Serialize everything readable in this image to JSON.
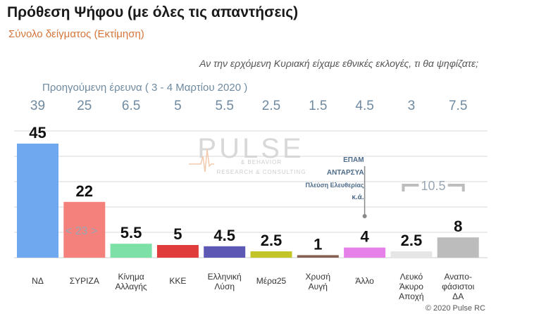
{
  "header": {
    "title": "Πρόθεση Ψήφου (με όλες τις απαντήσεις)",
    "subtitle": "Σύνολο δείγματος   (Εκτίμηση)",
    "question": "Αν την ερχόμενη Κυριακή είχαμε εθνικές εκλογές, τι θα ψηφίζατε;",
    "previous_label": "Προηγούμενη έρευνα  ( 3 - 4  Μαρτίου 2020 )"
  },
  "chart_data": {
    "type": "bar",
    "categories": [
      [
        "ΝΔ"
      ],
      [
        "ΣΥΡΙΖΑ"
      ],
      [
        "Κίνημα",
        "Αλλαγής"
      ],
      [
        "ΚΚΕ"
      ],
      [
        "Ελληνική",
        "Λύση"
      ],
      [
        "Μέρα25"
      ],
      [
        "Χρυσή",
        "Αυγή"
      ],
      [
        "Άλλο"
      ],
      [
        "Λευκό",
        "Άκυρο",
        "Αποχή"
      ],
      [
        "Αναπο-",
        "φάσιστοι",
        "ΔΑ"
      ]
    ],
    "values": [
      45,
      22,
      5.5,
      5,
      4.5,
      2.5,
      1,
      4,
      2.5,
      8
    ],
    "value_labels": [
      "45",
      "22",
      "5.5",
      "5",
      "4.5",
      "2.5",
      "1",
      "4",
      "2.5",
      "8"
    ],
    "previous_values": [
      "39",
      "25",
      "6.5",
      "5",
      "5.5",
      "2.5",
      "1.5",
      "4.5",
      "3",
      "7.5"
    ],
    "colors": [
      "#6fa8ef",
      "#f4817c",
      "#7de0a6",
      "#e03c3c",
      "#5c58b4",
      "#c3c427",
      "#876153",
      "#e581e9",
      "#e6e6e6",
      "#bcbcbc"
    ],
    "ylim": [
      0,
      50
    ],
    "grid": true,
    "annotations": {
      "lead": "< 23 >",
      "other_breakdown": [
        "ΕΠΑΜ",
        "ΑΝΤΑΡΣΥΑ",
        "Πλεύση Ελευθερίας",
        "κ.ά."
      ],
      "bracket_total": "10.5"
    }
  },
  "watermark": {
    "brand": "PULSE",
    "tagline": "RESEARCH & CONSULTING",
    "small": "& BEHAVIOR"
  },
  "footer": {
    "copyright": "© 2020 Pulse RC"
  }
}
